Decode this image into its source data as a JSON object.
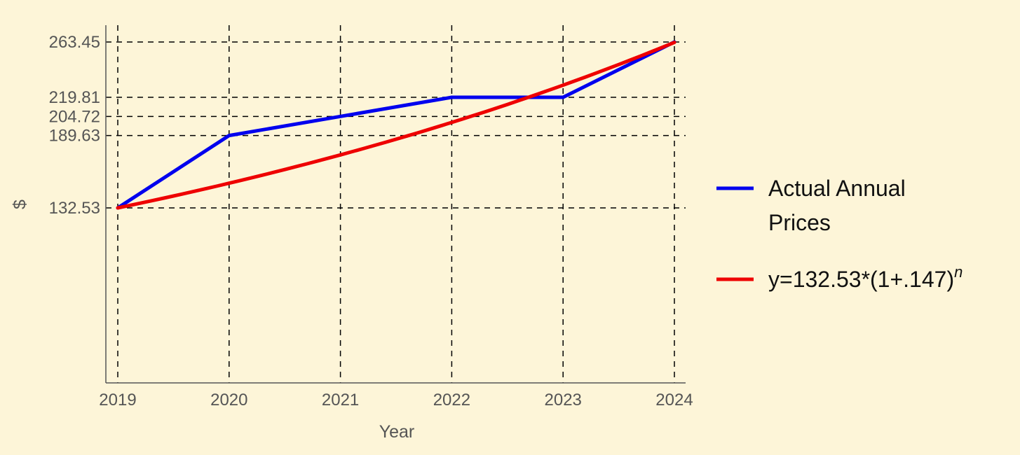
{
  "chart_data": {
    "type": "line",
    "xlabel": "Year",
    "ylabel": "$",
    "x": [
      2019,
      2020,
      2021,
      2022,
      2023,
      2024
    ],
    "x_ticks": [
      "2019",
      "2020",
      "2021",
      "2022",
      "2023",
      "2024"
    ],
    "y_ticks": [
      132.53,
      189.63,
      204.72,
      219.81,
      263.45
    ],
    "y_tick_labels": [
      "132.53",
      "189.63",
      "204.72",
      "219.81",
      "263.45"
    ],
    "xlim": [
      2018.9,
      2024.1
    ],
    "ylim": [
      45,
      276
    ],
    "grid": "dashed",
    "legend_position": "right",
    "series": [
      {
        "name": "Actual Annual Prices",
        "color": "#0000ee",
        "values": [
          132.53,
          189.63,
          204.72,
          219.81,
          219.81,
          263.45
        ]
      },
      {
        "name": "y=132.53*(1+.147)",
        "name_superscript": "n",
        "color": "#ee0000",
        "values": [
          132.53,
          152.01,
          174.36,
          199.99,
          229.39,
          263.11
        ]
      }
    ]
  }
}
